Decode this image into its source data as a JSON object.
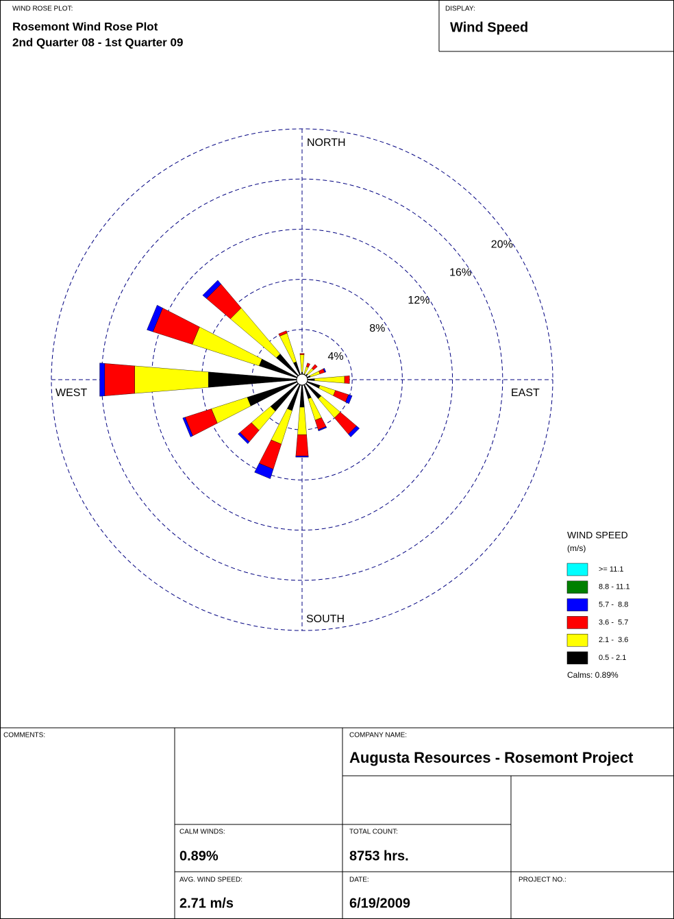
{
  "header": {
    "plot_label": "WIND ROSE PLOT:",
    "title": "Rosemont Wind Rose Plot",
    "subtitle": "2nd Quarter 08 - 1st Quarter 09",
    "display_label": "DISPLAY:",
    "display": "Wind Speed"
  },
  "chart_data": {
    "type": "windrose",
    "x": [
      0,
      22.5,
      45,
      67.5,
      90,
      112.5,
      135,
      157.5,
      180,
      202.5,
      225,
      247.5,
      270,
      292.5,
      315,
      337.5
    ],
    "rlim": [
      0,
      20
    ],
    "rticks": [
      {
        "value": 4,
        "label": "4%"
      },
      {
        "value": 8,
        "label": "8%"
      },
      {
        "value": 12,
        "label": "12%"
      },
      {
        "value": 16,
        "label": "16%"
      },
      {
        "value": 20,
        "label": "20%"
      }
    ],
    "grid": true,
    "direction_labels": {
      "north": "NORTH",
      "east": "EAST",
      "south": "SOUTH",
      "west": "WEST"
    },
    "legend_title": "WIND SPEED",
    "legend_unit": "(m/s)",
    "calms_label": "Calms: 0.89%",
    "series": [
      {
        "name": "0.5 - 2.1",
        "color": "#000000",
        "values": [
          0.6,
          0.5,
          0.6,
          0.7,
          1.0,
          1.5,
          2.0,
          1.6,
          2.2,
          2.6,
          3.3,
          4.6,
          7.5,
          3.6,
          2.7,
          1.5
        ]
      },
      {
        "name": "2.1 -  3.6",
        "color": "#ffff00",
        "values": [
          1.4,
          0.6,
          0.6,
          0.8,
          2.4,
          1.3,
          2.0,
          1.8,
          2.2,
          2.8,
          2.0,
          3.0,
          5.9,
          5.6,
          4.8,
          2.4
        ]
      },
      {
        "name": "3.6 -  5.7",
        "color": "#ff0000",
        "values": [
          0.1,
          0.3,
          0.4,
          0.4,
          0.4,
          1.1,
          1.7,
          0.8,
          1.7,
          2.1,
          1.2,
          2.2,
          2.4,
          3.3,
          2.5,
          0.2
        ]
      },
      {
        "name": "5.7 -  8.8",
        "color": "#0000ff",
        "values": [
          0,
          0,
          0,
          0.1,
          0,
          0.3,
          0.3,
          0.1,
          0.1,
          0.8,
          0.2,
          0.2,
          0.4,
          0.5,
          0.4,
          0
        ]
      },
      {
        "name": "8.8 - 11.1",
        "color": "#008000",
        "values": [
          0,
          0,
          0,
          0,
          0,
          0,
          0,
          0,
          0,
          0,
          0,
          0,
          0,
          0,
          0,
          0
        ]
      },
      {
        "name": ">= 11.1",
        "color": "#00ffff",
        "values": [
          0,
          0,
          0,
          0,
          0,
          0,
          0,
          0,
          0,
          0,
          0,
          0,
          0,
          0,
          0,
          0
        ]
      }
    ]
  },
  "footer": {
    "comments_label": "COMMENTS:",
    "company_label": "COMPANY NAME:",
    "company": "Augusta Resources -  Rosemont Project",
    "calm_label": "CALM WINDS:",
    "calm": "0.89%",
    "count_label": "TOTAL COUNT:",
    "count": "8753 hrs.",
    "avg_label": "AVG. WIND SPEED:",
    "avg": "2.71 m/s",
    "date_label": "DATE:",
    "date": "6/19/2009",
    "project_label": "PROJECT NO.:"
  }
}
